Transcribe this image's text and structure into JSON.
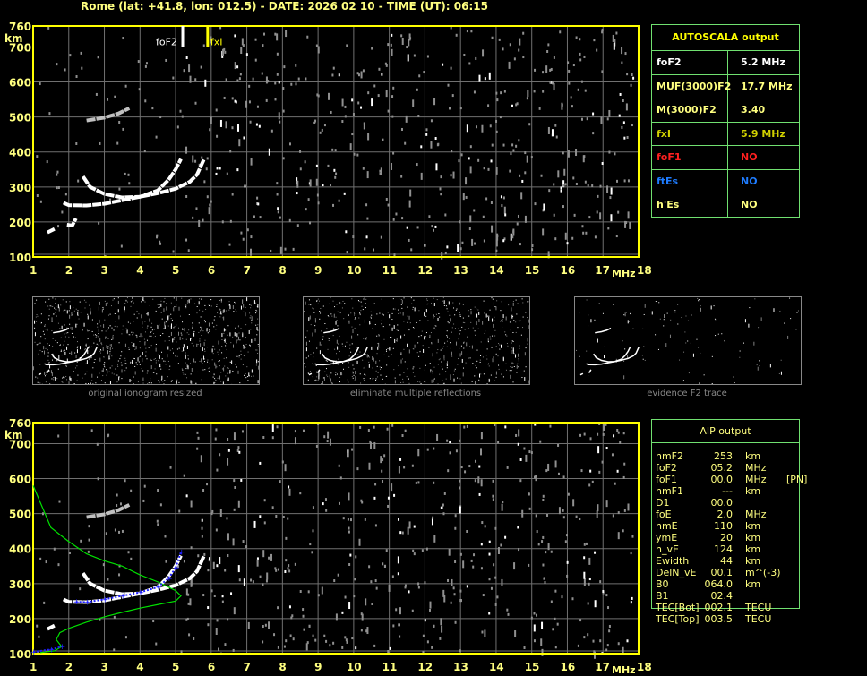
{
  "header": {
    "title": "Rome (lat: +41.8, lon: 012.5) - DATE: 2026 02 10 - TIME (UT): 06:15"
  },
  "chart_data": [
    {
      "type": "scatter",
      "name": "ionogram",
      "xlim": [
        1,
        18
      ],
      "ylim": [
        100,
        760
      ],
      "xticks": [
        "1",
        "2",
        "3",
        "4",
        "5",
        "6",
        "7",
        "8",
        "9",
        "10",
        "11",
        "12",
        "13",
        "14",
        "15",
        "16",
        "17",
        "18"
      ],
      "yticks": [
        "100",
        "200",
        "300",
        "400",
        "500",
        "600",
        "700",
        "760"
      ],
      "xlabel": "MHz",
      "ylabel": "km",
      "grid": true,
      "markers": [
        {
          "label": "foF2",
          "x": 5.2,
          "color": "#ffffff"
        },
        {
          "label": "fxI",
          "x": 5.9,
          "color": "#ffff00"
        }
      ],
      "traces": [
        {
          "color": "#ffffff",
          "points": [
            [
              1.85,
              255
            ],
            [
              2.0,
              248
            ],
            [
              2.5,
              247
            ],
            [
              3.0,
              252
            ],
            [
              3.5,
              262
            ],
            [
              4.0,
              272
            ],
            [
              4.5,
              282
            ],
            [
              5.0,
              295
            ],
            [
              5.4,
              315
            ],
            [
              5.6,
              335
            ],
            [
              5.8,
              380
            ]
          ]
        },
        {
          "color": "#ffffff",
          "points": [
            [
              2.4,
              330
            ],
            [
              2.6,
              300
            ],
            [
              3.0,
              280
            ],
            [
              3.5,
              270
            ],
            [
              4.0,
              272
            ],
            [
              4.5,
              290
            ],
            [
              4.8,
              320
            ],
            [
              5.0,
              350
            ],
            [
              5.15,
              380
            ]
          ]
        },
        {
          "color": "#c0c0c0",
          "points": [
            [
              2.5,
              490
            ],
            [
              3.0,
              498
            ],
            [
              3.4,
              510
            ],
            [
              3.7,
              525
            ]
          ]
        },
        {
          "color": "#ffffff",
          "points": [
            [
              1.4,
              170
            ],
            [
              1.6,
              180
            ]
          ]
        },
        {
          "color": "#ffffff",
          "points": [
            [
              1.95,
              192
            ],
            [
              2.1,
              190
            ],
            [
              2.2,
              210
            ]
          ]
        }
      ]
    },
    {
      "type": "line",
      "name": "aip-profile",
      "xlim": [
        1,
        18
      ],
      "ylim": [
        100,
        760
      ],
      "xticks": [
        "1",
        "2",
        "3",
        "4",
        "5",
        "6",
        "7",
        "8",
        "9",
        "10",
        "11",
        "12",
        "13",
        "14",
        "15",
        "16",
        "17",
        "18"
      ],
      "yticks": [
        "100",
        "200",
        "300",
        "400",
        "500",
        "600",
        "700",
        "760"
      ],
      "xlabel": "MHz",
      "ylabel": "km",
      "grid": true,
      "traces": [
        {
          "color": "#ffffff",
          "points": [
            [
              1.85,
              255
            ],
            [
              2.0,
              248
            ],
            [
              2.5,
              247
            ],
            [
              3.0,
              252
            ],
            [
              3.5,
              262
            ],
            [
              4.0,
              272
            ],
            [
              4.5,
              282
            ],
            [
              5.0,
              295
            ],
            [
              5.4,
              315
            ],
            [
              5.6,
              335
            ],
            [
              5.8,
              380
            ]
          ]
        },
        {
          "color": "#ffffff",
          "points": [
            [
              2.4,
              330
            ],
            [
              2.6,
              300
            ],
            [
              3.0,
              280
            ],
            [
              3.5,
              270
            ],
            [
              4.0,
              272
            ],
            [
              4.5,
              290
            ],
            [
              4.8,
              320
            ],
            [
              5.0,
              350
            ],
            [
              5.15,
              380
            ]
          ]
        },
        {
          "color": "#c0c0c0",
          "points": [
            [
              2.5,
              490
            ],
            [
              3.0,
              498
            ],
            [
              3.4,
              510
            ],
            [
              3.7,
              525
            ]
          ]
        },
        {
          "color": "#ffffff",
          "points": [
            [
              1.4,
              170
            ],
            [
              1.6,
              180
            ]
          ]
        }
      ],
      "fit": {
        "color": "#2020ff",
        "points": [
          [
            1.0,
            105
          ],
          [
            1.5,
            112
          ],
          [
            1.8,
            120
          ],
          [
            2.2,
            248
          ],
          [
            2.5,
            247
          ],
          [
            3.0,
            255
          ],
          [
            3.5,
            265
          ],
          [
            4.0,
            275
          ],
          [
            4.5,
            290
          ],
          [
            4.8,
            315
          ],
          [
            5.0,
            345
          ],
          [
            5.15,
            390
          ]
        ]
      },
      "profile": {
        "color": "#00e000",
        "points": [
          [
            1.0,
            580
          ],
          [
            1.5,
            460
          ],
          [
            2.0,
            420
          ],
          [
            2.5,
            385
          ],
          [
            3.0,
            365
          ],
          [
            3.5,
            350
          ],
          [
            4.0,
            325
          ],
          [
            4.5,
            305
          ],
          [
            5.0,
            280
          ],
          [
            5.15,
            265
          ],
          [
            5.0,
            250
          ],
          [
            4.5,
            240
          ],
          [
            4.0,
            230
          ],
          [
            3.5,
            218
          ],
          [
            3.0,
            205
          ],
          [
            2.5,
            190
          ],
          [
            2.0,
            172
          ],
          [
            1.75,
            160
          ],
          [
            1.65,
            140
          ],
          [
            1.8,
            120
          ],
          [
            1.6,
            108
          ],
          [
            1.2,
            103
          ]
        ]
      }
    }
  ],
  "autoscala": {
    "title": "AUTOSCALA output",
    "rows": [
      {
        "key": "foF2",
        "value": "5.2 MHz",
        "color": "#ffffff"
      },
      {
        "key": "MUF(3000)F2",
        "value": "17.7 MHz",
        "color": "#ffff80"
      },
      {
        "key": "M(3000)F2",
        "value": "3.40",
        "color": "#ffff80"
      },
      {
        "key": "fxI",
        "value": "5.9 MHz",
        "color": "#d0d000"
      },
      {
        "key": "foF1",
        "value": "NO",
        "color": "#ff2020"
      },
      {
        "key": "ftEs",
        "value": "NO",
        "color": "#1e7cff"
      },
      {
        "key": "h'Es",
        "value": "NO",
        "color": "#ffff80"
      }
    ]
  },
  "thumbnails": [
    "original ionogram resized",
    "eliminate multiple reflections",
    "evidence F2 trace"
  ],
  "aip": {
    "title": "AIP output",
    "rows": [
      [
        "hmF2",
        "253",
        "km",
        ""
      ],
      [
        "foF2",
        "05.2",
        "MHz",
        ""
      ],
      [
        "foF1",
        "00.0",
        "MHz",
        "[PN]"
      ],
      [
        "hmF1",
        "---",
        "km",
        ""
      ],
      [
        "D1",
        "00.0",
        "",
        ""
      ],
      [
        "foE",
        "2.0",
        "MHz",
        ""
      ],
      [
        "hmE",
        "110",
        "km",
        ""
      ],
      [
        "ymE",
        "20",
        "km",
        ""
      ],
      [
        "h_vE",
        "124",
        "km",
        ""
      ],
      [
        "Ewidth",
        "44",
        "km",
        ""
      ],
      [
        "DelN_vE",
        "00.1",
        "m^(-3)",
        ""
      ],
      [
        "B0",
        "064.0",
        "km",
        ""
      ],
      [
        "B1",
        "02.4",
        "",
        ""
      ],
      [
        "TEC[Bot]",
        "002.1",
        "TECU",
        ""
      ],
      [
        "TEC[Top]",
        "003.5",
        "TECU",
        ""
      ]
    ]
  }
}
